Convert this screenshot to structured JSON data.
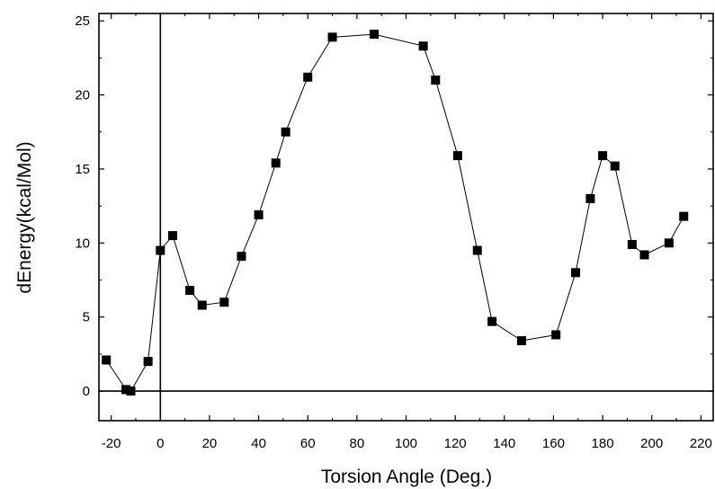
{
  "chart_data": {
    "type": "scatter",
    "xlabel": "Torsion Angle (Deg.)",
    "ylabel": "dEnergy(kcal/Mol)",
    "xlim": [
      -25,
      225
    ],
    "ylim": [
      -2,
      25.5
    ],
    "xticks": [
      -20,
      0,
      20,
      40,
      60,
      80,
      100,
      120,
      140,
      160,
      180,
      200,
      220
    ],
    "yticks": [
      0,
      5,
      10,
      15,
      20,
      25
    ],
    "reference_lines": {
      "x": 0,
      "y": 0
    },
    "grid": false,
    "marker": "filled-square",
    "connected": true,
    "colors": {
      "marker": "#000000",
      "line": "#000000",
      "axes": "#000000",
      "background": "#ffffff"
    },
    "series": [
      {
        "x": [
          -22,
          -14,
          -12,
          -5,
          0,
          5,
          12,
          17,
          26,
          33,
          40,
          47,
          51,
          60,
          70,
          87,
          107,
          112,
          121,
          129,
          135,
          147,
          161,
          169,
          175,
          180,
          185,
          192,
          197,
          207,
          213
        ],
        "y": [
          2.1,
          0.1,
          0.0,
          2.0,
          9.5,
          10.5,
          6.8,
          5.8,
          6.0,
          9.1,
          11.9,
          15.4,
          17.5,
          21.2,
          23.9,
          24.1,
          23.3,
          21.0,
          15.9,
          9.5,
          4.7,
          3.4,
          3.8,
          8.0,
          13.0,
          15.9,
          15.2,
          9.9,
          9.2,
          10.0,
          11.8
        ]
      }
    ]
  }
}
